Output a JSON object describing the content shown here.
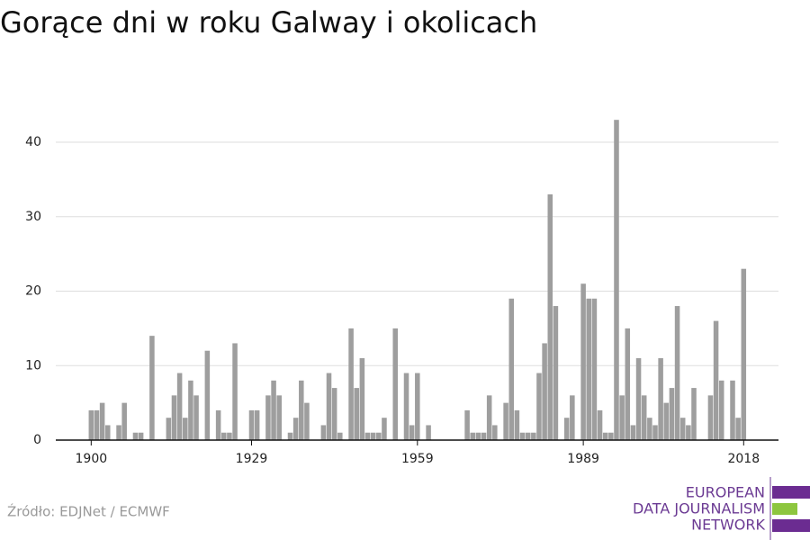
{
  "chart_data": {
    "type": "bar",
    "title": "Gorące dni w roku Galway i okolicach",
    "x": [
      1900,
      1901,
      1902,
      1903,
      1904,
      1905,
      1906,
      1907,
      1908,
      1909,
      1910,
      1911,
      1912,
      1913,
      1914,
      1915,
      1916,
      1917,
      1918,
      1919,
      1920,
      1921,
      1922,
      1923,
      1924,
      1925,
      1926,
      1927,
      1928,
      1929,
      1930,
      1931,
      1932,
      1933,
      1934,
      1935,
      1936,
      1937,
      1938,
      1939,
      1940,
      1941,
      1942,
      1943,
      1944,
      1945,
      1946,
      1947,
      1948,
      1949,
      1950,
      1951,
      1952,
      1953,
      1954,
      1955,
      1956,
      1957,
      1958,
      1959,
      1960,
      1961,
      1962,
      1963,
      1964,
      1965,
      1966,
      1967,
      1968,
      1969,
      1970,
      1971,
      1972,
      1973,
      1974,
      1975,
      1976,
      1977,
      1978,
      1979,
      1980,
      1981,
      1982,
      1983,
      1984,
      1985,
      1986,
      1987,
      1988,
      1989,
      1990,
      1991,
      1992,
      1993,
      1994,
      1995,
      1996,
      1997,
      1998,
      1999,
      2000,
      2001,
      2002,
      2003,
      2004,
      2005,
      2006,
      2007,
      2008,
      2009,
      2010,
      2011,
      2012,
      2013,
      2014,
      2015,
      2016,
      2017,
      2018
    ],
    "values": [
      4,
      4,
      5,
      2,
      0,
      2,
      5,
      0,
      1,
      1,
      0,
      14,
      0,
      0,
      3,
      6,
      9,
      3,
      8,
      6,
      0,
      12,
      0,
      4,
      1,
      1,
      13,
      0,
      0,
      4,
      4,
      0,
      6,
      8,
      6,
      0,
      1,
      3,
      8,
      5,
      0,
      0,
      2,
      9,
      7,
      1,
      0,
      15,
      7,
      11,
      1,
      1,
      1,
      3,
      0,
      15,
      0,
      9,
      2,
      9,
      0,
      2,
      0,
      0,
      0,
      0,
      0,
      0,
      4,
      1,
      1,
      1,
      6,
      2,
      0,
      5,
      19,
      4,
      1,
      1,
      1,
      9,
      13,
      33,
      18,
      0,
      3,
      6,
      0,
      21,
      19,
      19,
      4,
      1,
      1,
      43,
      6,
      15,
      2,
      11,
      6,
      3,
      2,
      11,
      5,
      7,
      18,
      3,
      2,
      7,
      0,
      0,
      6,
      16,
      8,
      0,
      8,
      3,
      23
    ],
    "color": "#9e9e9e",
    "xlim": [
      1893.6,
      2024.3
    ],
    "xticks": [
      1900,
      1929,
      1959,
      1989,
      2018
    ],
    "ylim": [
      0,
      46
    ],
    "yticks": [
      0,
      10,
      20,
      30,
      40
    ],
    "grid": true,
    "source": "Źródło: EDJNet / ECMWF",
    "logo": [
      "EUROPEAN",
      "DATA JOURNALISM",
      "NETWORK"
    ]
  }
}
